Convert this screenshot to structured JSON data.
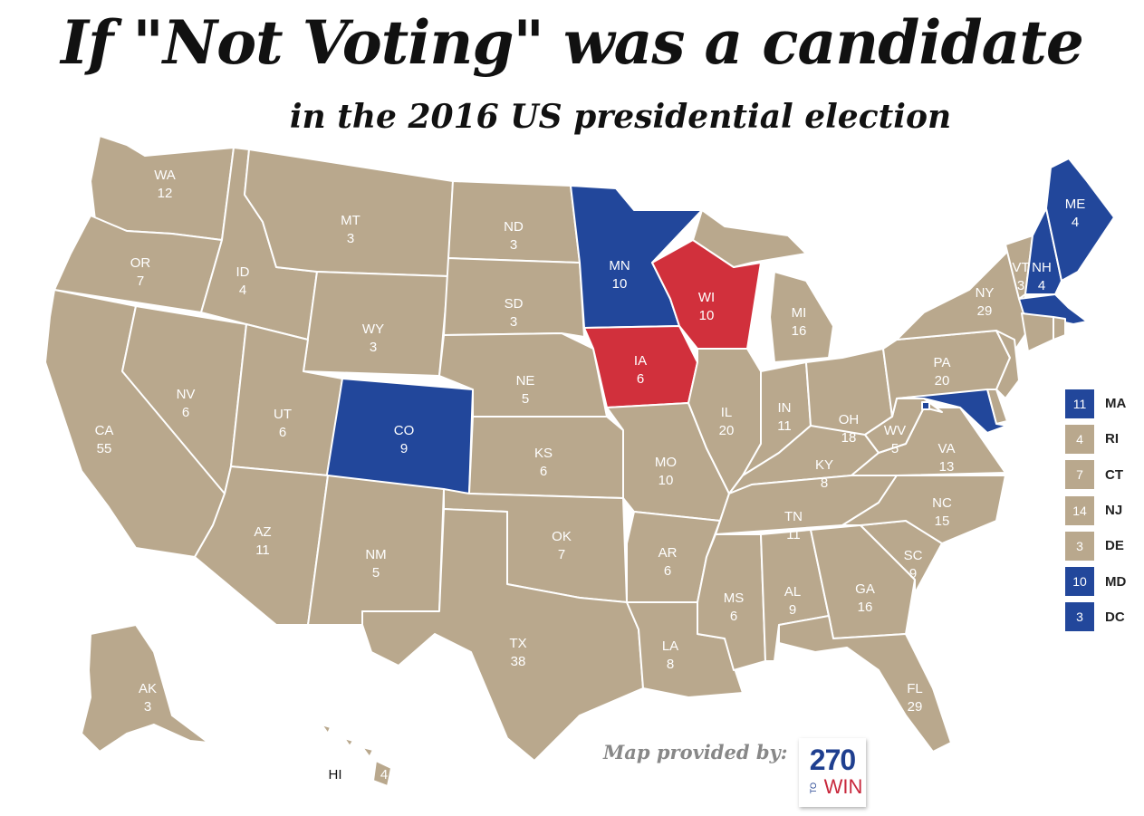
{
  "title": "If \"Not Voting\" was a candidate",
  "subtitle": "in the 2016 US presidential election",
  "colors": {
    "not_voting": "#b9a88d",
    "democrat": "#22479b",
    "republican": "#d1303c"
  },
  "states": [
    {
      "abbr": "WA",
      "votes": "12",
      "party": "not_voting"
    },
    {
      "abbr": "OR",
      "votes": "7",
      "party": "not_voting"
    },
    {
      "abbr": "CA",
      "votes": "55",
      "party": "not_voting"
    },
    {
      "abbr": "NV",
      "votes": "6",
      "party": "not_voting"
    },
    {
      "abbr": "ID",
      "votes": "4",
      "party": "not_voting"
    },
    {
      "abbr": "MT",
      "votes": "3",
      "party": "not_voting"
    },
    {
      "abbr": "WY",
      "votes": "3",
      "party": "not_voting"
    },
    {
      "abbr": "UT",
      "votes": "6",
      "party": "not_voting"
    },
    {
      "abbr": "CO",
      "votes": "9",
      "party": "democrat"
    },
    {
      "abbr": "AZ",
      "votes": "11",
      "party": "not_voting"
    },
    {
      "abbr": "NM",
      "votes": "5",
      "party": "not_voting"
    },
    {
      "abbr": "ND",
      "votes": "3",
      "party": "not_voting"
    },
    {
      "abbr": "SD",
      "votes": "3",
      "party": "not_voting"
    },
    {
      "abbr": "NE",
      "votes": "5",
      "party": "not_voting"
    },
    {
      "abbr": "KS",
      "votes": "6",
      "party": "not_voting"
    },
    {
      "abbr": "OK",
      "votes": "7",
      "party": "not_voting"
    },
    {
      "abbr": "TX",
      "votes": "38",
      "party": "not_voting"
    },
    {
      "abbr": "MN",
      "votes": "10",
      "party": "democrat"
    },
    {
      "abbr": "IA",
      "votes": "6",
      "party": "republican"
    },
    {
      "abbr": "MO",
      "votes": "10",
      "party": "not_voting"
    },
    {
      "abbr": "AR",
      "votes": "6",
      "party": "not_voting"
    },
    {
      "abbr": "LA",
      "votes": "8",
      "party": "not_voting"
    },
    {
      "abbr": "WI",
      "votes": "10",
      "party": "republican"
    },
    {
      "abbr": "IL",
      "votes": "20",
      "party": "not_voting"
    },
    {
      "abbr": "MI",
      "votes": "16",
      "party": "not_voting"
    },
    {
      "abbr": "IN",
      "votes": "11",
      "party": "not_voting"
    },
    {
      "abbr": "OH",
      "votes": "18",
      "party": "not_voting"
    },
    {
      "abbr": "KY",
      "votes": "8",
      "party": "not_voting"
    },
    {
      "abbr": "TN",
      "votes": "11",
      "party": "not_voting"
    },
    {
      "abbr": "MS",
      "votes": "6",
      "party": "not_voting"
    },
    {
      "abbr": "AL",
      "votes": "9",
      "party": "not_voting"
    },
    {
      "abbr": "GA",
      "votes": "16",
      "party": "not_voting"
    },
    {
      "abbr": "FL",
      "votes": "29",
      "party": "not_voting"
    },
    {
      "abbr": "SC",
      "votes": "9",
      "party": "not_voting"
    },
    {
      "abbr": "NC",
      "votes": "15",
      "party": "not_voting"
    },
    {
      "abbr": "VA",
      "votes": "13",
      "party": "not_voting"
    },
    {
      "abbr": "WV",
      "votes": "5",
      "party": "not_voting"
    },
    {
      "abbr": "PA",
      "votes": "20",
      "party": "not_voting"
    },
    {
      "abbr": "NY",
      "votes": "29",
      "party": "not_voting"
    },
    {
      "abbr": "VT",
      "votes": "3",
      "party": "not_voting"
    },
    {
      "abbr": "NH",
      "votes": "4",
      "party": "democrat"
    },
    {
      "abbr": "ME",
      "votes": "4",
      "party": "democrat"
    },
    {
      "abbr": "AK",
      "votes": "3",
      "party": "not_voting"
    },
    {
      "abbr": "HI",
      "votes": "4",
      "party": "not_voting"
    },
    {
      "abbr": "MA",
      "votes": "11",
      "party": "democrat"
    },
    {
      "abbr": "RI",
      "votes": "4",
      "party": "not_voting"
    },
    {
      "abbr": "CT",
      "votes": "7",
      "party": "not_voting"
    },
    {
      "abbr": "NJ",
      "votes": "14",
      "party": "not_voting"
    },
    {
      "abbr": "DE",
      "votes": "3",
      "party": "not_voting"
    },
    {
      "abbr": "MD",
      "votes": "10",
      "party": "democrat"
    },
    {
      "abbr": "DC",
      "votes": "3",
      "party": "democrat"
    }
  ],
  "legend": [
    {
      "abbr": "MA",
      "votes": "11",
      "party": "democrat"
    },
    {
      "abbr": "RI",
      "votes": "4",
      "party": "not_voting"
    },
    {
      "abbr": "CT",
      "votes": "7",
      "party": "not_voting"
    },
    {
      "abbr": "NJ",
      "votes": "14",
      "party": "not_voting"
    },
    {
      "abbr": "DE",
      "votes": "3",
      "party": "not_voting"
    },
    {
      "abbr": "MD",
      "votes": "10",
      "party": "democrat"
    },
    {
      "abbr": "DC",
      "votes": "3",
      "party": "democrat"
    }
  ],
  "credit": "Map provided by:",
  "logo": {
    "number": "270",
    "to": "TO",
    "win": "WIN"
  }
}
